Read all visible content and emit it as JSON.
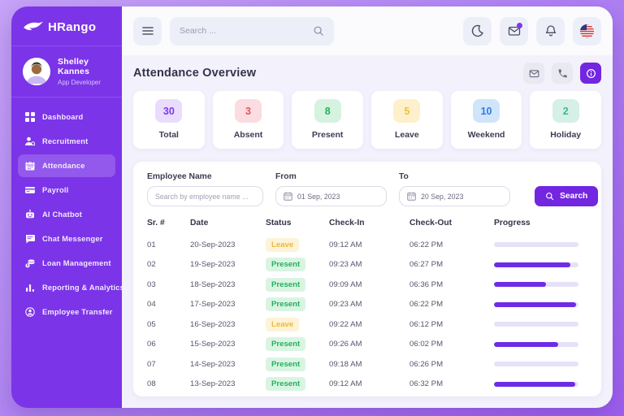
{
  "colors": {
    "accent": "#7226e0",
    "sidebar_bg": "#7c34e8",
    "progress_fill": "#6d2ce5",
    "progress_track": "#e7e1f8"
  },
  "sidebar": {
    "logo": "HRango",
    "user": {
      "name": "Shelley Kannes",
      "role": "App Developer"
    },
    "items": [
      {
        "label": "Dashboard",
        "icon": "dashboard-icon",
        "active": false
      },
      {
        "label": "Recruitment",
        "icon": "recruitment-icon",
        "active": false
      },
      {
        "label": "Attendance",
        "icon": "calendar-icon",
        "active": true
      },
      {
        "label": "Payroll",
        "icon": "payroll-icon",
        "active": false
      },
      {
        "label": "AI Chatbot",
        "icon": "robot-icon",
        "active": false
      },
      {
        "label": "Chat Messenger",
        "icon": "chat-icon",
        "active": false
      },
      {
        "label": "Loan Management",
        "icon": "loan-icon",
        "active": false
      },
      {
        "label": "Reporting & Analytics",
        "icon": "bar-chart-icon",
        "active": false
      },
      {
        "label": "Employee Transfer",
        "icon": "transfer-icon",
        "active": false
      }
    ]
  },
  "topbar": {
    "search_placeholder": "Search ...",
    "icons": [
      "menu-icon",
      "moon-icon",
      "mail-icon",
      "bell-icon",
      "us-flag-icon"
    ]
  },
  "header": {
    "title": "Attendance Overview",
    "action_icons": [
      "mail-icon",
      "phone-icon",
      "info-icon"
    ]
  },
  "stats": [
    {
      "label": "Total",
      "value": "30",
      "fg": "#7c3aed",
      "bg": "#eadcfc"
    },
    {
      "label": "Absent",
      "value": "3",
      "fg": "#e25563",
      "bg": "#fbdce0"
    },
    {
      "label": "Present",
      "value": "8",
      "fg": "#27b05e",
      "bg": "#d6f3e0"
    },
    {
      "label": "Leave",
      "value": "5",
      "fg": "#eec23a",
      "bg": "#fdf0cb"
    },
    {
      "label": "Weekend",
      "value": "10",
      "fg": "#2e7ce4",
      "bg": "#d0e5fa"
    },
    {
      "label": "Holiday",
      "value": "2",
      "fg": "#3cb98f",
      "bg": "#d5f0e6"
    }
  ],
  "filters": {
    "employee_label": "Employee Name",
    "employee_placeholder": "Search by employee name ...",
    "from_label": "From",
    "from_value": "01 Sep, 2023",
    "to_label": "To",
    "to_value": "20 Sep, 2023",
    "search_button": "Search"
  },
  "table": {
    "columns": [
      "Sr. #",
      "Date",
      "Status",
      "Check-In",
      "Check-Out",
      "Progress"
    ],
    "status_styles": {
      "Present": {
        "fg": "#27ae60",
        "bg": "#d9f5e2"
      },
      "Leave": {
        "fg": "#efb73e",
        "bg": "#fdf3d6"
      }
    },
    "rows": [
      {
        "sr": "01",
        "date": "20-Sep-2023",
        "status": "Leave",
        "check_in": "09:12 AM",
        "check_out": "06:22 PM",
        "progress": 0
      },
      {
        "sr": "02",
        "date": "19-Sep-2023",
        "status": "Present",
        "check_in": "09:23 AM",
        "check_out": "06:27 PM",
        "progress": 90
      },
      {
        "sr": "03",
        "date": "18-Sep-2023",
        "status": "Present",
        "check_in": "09:09 AM",
        "check_out": "06:36 PM",
        "progress": 62
      },
      {
        "sr": "04",
        "date": "17-Sep-2023",
        "status": "Present",
        "check_in": "09:23 AM",
        "check_out": "06:22 PM",
        "progress": 97
      },
      {
        "sr": "05",
        "date": "16-Sep-2023",
        "status": "Leave",
        "check_in": "09:22 AM",
        "check_out": "06:12 PM",
        "progress": 0
      },
      {
        "sr": "06",
        "date": "15-Sep-2023",
        "status": "Present",
        "check_in": "09:26 AM",
        "check_out": "06:02 PM",
        "progress": 76
      },
      {
        "sr": "07",
        "date": "14-Sep-2023",
        "status": "Present",
        "check_in": "09:18 AM",
        "check_out": "06:26 PM",
        "progress": 0
      },
      {
        "sr": "08",
        "date": "13-Sep-2023",
        "status": "Present",
        "check_in": "09:12 AM",
        "check_out": "06:32 PM",
        "progress": 96
      }
    ]
  }
}
